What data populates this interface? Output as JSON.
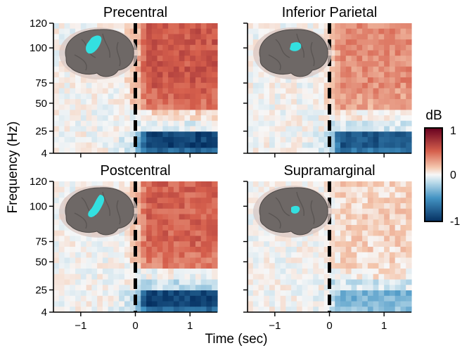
{
  "figure": {
    "ylabel": "Frequency (Hz)",
    "xlabel": "Time (sec)"
  },
  "colorbar": {
    "label": "dB",
    "ticks": [
      "1",
      "0",
      "-1"
    ],
    "colors": {
      "high": "#67001f",
      "mid_high": "#f4a582",
      "zero": "#f7f7f7",
      "mid_low": "#92c5de",
      "low": "#053061"
    }
  },
  "brain_colors": {
    "brain": "#6e6866",
    "halo": "#d9c7c2",
    "region": "#33e0e0"
  },
  "chart_data": [
    {
      "type": "heatmap",
      "title": "Precentral",
      "x_ticks": [
        "−1",
        "0",
        "1"
      ],
      "y_ticks": [
        "120",
        "100",
        "75",
        "50",
        "25",
        "4"
      ],
      "xlim": [
        -1.5,
        1.5
      ],
      "event_line_at": 0,
      "values_dB": {
        "4-25Hz_post": -0.9,
        "25-50Hz_post": 0.1,
        "50-120Hz_post": 0.55,
        "pre": 0.0
      },
      "colorbar_range": [
        -1,
        1
      ]
    },
    {
      "type": "heatmap",
      "title": "Inferior Parietal",
      "x_ticks": [
        "−1",
        "0",
        "1"
      ],
      "y_ticks": [
        "120",
        "100",
        "75",
        "50",
        "25",
        "4"
      ],
      "xlim": [
        -1.5,
        1.5
      ],
      "event_line_at": 0,
      "values_dB": {
        "4-25Hz_post": -0.8,
        "25-50Hz_post": 0.05,
        "50-120Hz_post": 0.35,
        "pre": 0.0
      },
      "colorbar_range": [
        -1,
        1
      ]
    },
    {
      "type": "heatmap",
      "title": "Postcentral",
      "x_ticks": [
        "−1",
        "0",
        "1"
      ],
      "y_ticks": [
        "120",
        "100",
        "75",
        "50",
        "25",
        "4"
      ],
      "xlim": [
        -1.5,
        1.5
      ],
      "event_line_at": 0,
      "values_dB": {
        "4-25Hz_post": -0.9,
        "25-50Hz_post": 0.0,
        "50-120Hz_post": 0.5,
        "pre": 0.0
      },
      "colorbar_range": [
        -1,
        1
      ]
    },
    {
      "type": "heatmap",
      "title": "Supramarginal",
      "x_ticks": [
        "−1",
        "0",
        "1"
      ],
      "y_ticks": [
        "120",
        "100",
        "75",
        "50",
        "25",
        "4"
      ],
      "xlim": [
        -1.5,
        1.5
      ],
      "event_line_at": 0,
      "values_dB": {
        "4-25Hz_post": -0.35,
        "25-50Hz_post": 0.05,
        "50-120Hz_post": 0.12,
        "pre": 0.0
      },
      "colorbar_range": [
        -1,
        1
      ]
    }
  ]
}
